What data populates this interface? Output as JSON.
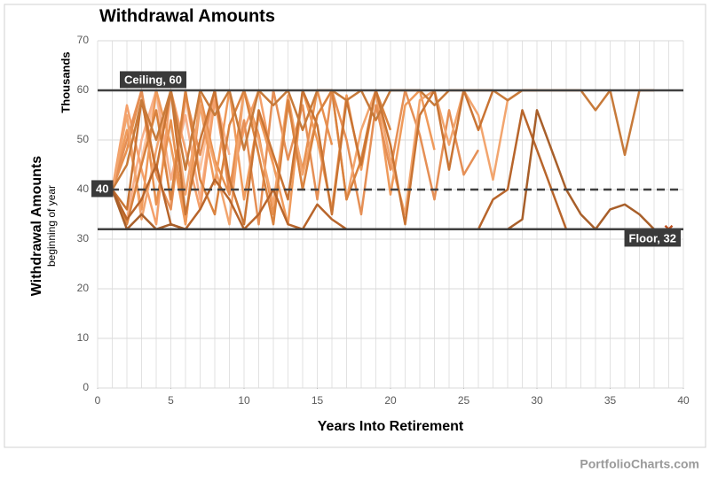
{
  "chart_data": {
    "type": "line",
    "title": "Withdrawal Amounts",
    "y_axis_title": "Withdrawal Amounts",
    "y_axis_subtitle": "beginning of year",
    "y_units": "Thousands",
    "x_axis_title": "Years Into Retirement",
    "footer": "PortfolioCharts.com",
    "xlim": [
      0,
      40
    ],
    "xticks": [
      0,
      5,
      10,
      15,
      20,
      25,
      30,
      35,
      40
    ],
    "ylim": [
      0,
      70
    ],
    "yticks": [
      0,
      10,
      20,
      30,
      40,
      50,
      60,
      70
    ],
    "grid": true,
    "reference_lines": [
      {
        "label": "Ceiling, 60",
        "value": 60,
        "style": "solid"
      },
      {
        "label": "40",
        "value": 40,
        "style": "dashed"
      },
      {
        "label": "Floor, 32",
        "value": 32,
        "style": "solid"
      }
    ],
    "series": [
      {
        "color": "#a85f2a",
        "end_marker": true,
        "x": [
          1,
          2,
          3,
          4,
          5,
          6,
          7,
          8,
          9,
          10,
          11,
          12,
          13,
          14,
          15,
          16,
          17,
          18,
          19,
          20,
          21,
          22,
          23,
          24,
          25,
          26,
          27,
          28,
          29,
          30,
          31,
          32,
          33,
          34,
          35,
          36,
          37,
          38,
          39
        ],
        "values": [
          40,
          32,
          35,
          32,
          33,
          32,
          32,
          32,
          32,
          32,
          32,
          32,
          32,
          32,
          32,
          32,
          32,
          32,
          32,
          32,
          32,
          32,
          32,
          32,
          32,
          32,
          32,
          32,
          34,
          56,
          48,
          40,
          35,
          32,
          36,
          37,
          35,
          32,
          32
        ]
      },
      {
        "color": "#b8652b",
        "x": [
          1,
          2,
          3,
          4,
          5,
          6,
          7,
          8,
          9,
          10,
          11,
          12,
          13,
          14,
          15,
          16,
          17,
          18,
          19,
          20,
          21,
          22,
          23,
          24,
          25,
          26,
          27,
          28,
          29,
          30,
          31,
          32,
          33
        ],
        "values": [
          40,
          34,
          38,
          45,
          33,
          32,
          36,
          42,
          38,
          32,
          35,
          40,
          33,
          32,
          37,
          34,
          32,
          32,
          32,
          32,
          32,
          32,
          32,
          32,
          32,
          32,
          38,
          40,
          56,
          48,
          40,
          32,
          32
        ]
      },
      {
        "color": "#c77a3a",
        "x": [
          1,
          2,
          3,
          4,
          5,
          6,
          7,
          8,
          9,
          10,
          11,
          12,
          13,
          14,
          15,
          16,
          17,
          18,
          19,
          20,
          21,
          22,
          23,
          24,
          25,
          26,
          27,
          28,
          29,
          30,
          31,
          32,
          33,
          34,
          35,
          36,
          37,
          38
        ],
        "values": [
          40,
          45,
          58,
          50,
          60,
          44,
          60,
          55,
          60,
          48,
          60,
          57,
          60,
          52,
          60,
          60,
          58,
          60,
          54,
          60,
          60,
          60,
          57,
          60,
          60,
          60,
          60,
          58,
          60,
          60,
          60,
          60,
          60,
          56,
          60,
          47,
          60,
          60
        ]
      },
      {
        "color": "#c97433",
        "x": [
          1,
          2,
          3,
          4,
          5,
          6,
          7,
          8,
          9,
          10,
          11,
          12,
          13,
          14,
          15,
          16,
          17,
          18,
          19,
          20,
          21,
          22,
          23,
          24,
          25,
          26,
          27
        ],
        "values": [
          40,
          36,
          58,
          44,
          60,
          35,
          50,
          60,
          42,
          33,
          56,
          47,
          38,
          60,
          53,
          35,
          58,
          45,
          60,
          49,
          33,
          55,
          60,
          44,
          60,
          52,
          60
        ]
      },
      {
        "color": "#d9823e",
        "x": [
          1,
          2,
          3,
          4,
          5,
          6,
          7,
          8,
          9,
          10,
          11,
          12,
          13,
          14,
          15,
          16,
          17,
          18,
          19,
          20
        ],
        "values": [
          40,
          33,
          45,
          56,
          38,
          60,
          42,
          35,
          53,
          60,
          47,
          33,
          58,
          40,
          55,
          60,
          38,
          46,
          60,
          52
        ]
      },
      {
        "color": "#f2a56e",
        "x": [
          1,
          2,
          3,
          4,
          5,
          6,
          7,
          8,
          9,
          10,
          11,
          12,
          13,
          14,
          15,
          16,
          17,
          18,
          19,
          20,
          21,
          22,
          23,
          24,
          25,
          26,
          27,
          28,
          29,
          30
        ],
        "values": [
          40,
          55,
          34,
          48,
          60,
          39,
          57,
          45,
          33,
          60,
          50,
          37,
          59,
          43,
          55,
          60,
          38,
          52,
          60,
          46,
          35,
          58,
          60,
          49,
          60,
          55,
          42,
          58,
          60,
          60
        ]
      },
      {
        "color": "#e58f55",
        "x": [
          1,
          2,
          3,
          4,
          5,
          6,
          7,
          8,
          9,
          10,
          11,
          12,
          13,
          14,
          15,
          16,
          17,
          18,
          19,
          20,
          21,
          22,
          23,
          24,
          25,
          26
        ],
        "values": [
          40,
          50,
          60,
          43,
          36,
          59,
          47,
          60,
          39,
          54,
          33,
          60,
          46,
          57,
          38,
          60,
          50,
          35,
          57,
          44,
          60,
          51,
          38,
          56,
          43,
          48
        ]
      },
      {
        "color": "#ef9a5a",
        "x": [
          1,
          2,
          3,
          4,
          5,
          6,
          7,
          8,
          9,
          10,
          11,
          12,
          13,
          14,
          15,
          16,
          17,
          18,
          19,
          20,
          21,
          22,
          23
        ],
        "values": [
          40,
          52,
          36,
          60,
          49,
          33,
          57,
          41,
          60,
          38,
          55,
          45,
          33,
          60,
          50,
          36,
          59,
          44,
          60,
          39,
          57,
          60,
          48
        ]
      },
      {
        "color": "#e8904e",
        "x": [
          1,
          2,
          3,
          4,
          5,
          6,
          7,
          8,
          9,
          10,
          11,
          12,
          13,
          14,
          15,
          16
        ],
        "values": [
          40,
          48,
          60,
          37,
          54,
          33,
          59,
          46,
          39,
          60,
          51,
          35,
          57,
          44,
          60,
          49
        ]
      },
      {
        "color": "#f4a06a",
        "x": [
          1,
          2,
          3,
          4,
          5,
          6,
          7,
          8,
          9,
          10,
          11,
          12
        ],
        "values": [
          40,
          57,
          44,
          33,
          60,
          48,
          36,
          58,
          41,
          52,
          60,
          45
        ]
      },
      {
        "color": "#f7b08a",
        "x": [
          1,
          2,
          3,
          4,
          5,
          6,
          7,
          8,
          9
        ],
        "values": [
          40,
          34,
          50,
          60,
          42,
          55,
          38,
          59,
          47
        ]
      },
      {
        "color": "#fbc3a0",
        "x": [
          1,
          2,
          3,
          4,
          5,
          6,
          7,
          8
        ],
        "values": [
          40,
          33,
          46,
          60,
          37,
          58,
          44,
          60
        ]
      }
    ]
  }
}
